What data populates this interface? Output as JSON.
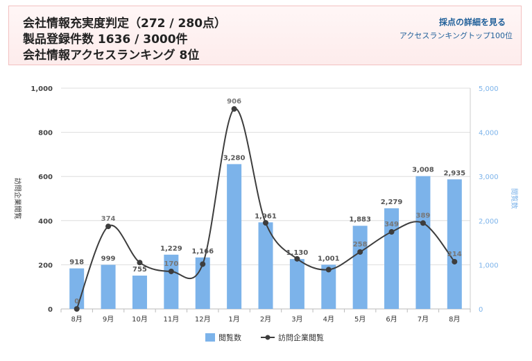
{
  "header": {
    "line1": "会社情報充実度判定（272 / 280点）",
    "line2": "製品登録件数 1636 / 3000件",
    "line3": "会社情報アクセスランキング 8位",
    "link_details": "採点の詳細を見る",
    "link_ranking": "アクセスランキングトップ100位"
  },
  "chart_data": {
    "type": "bar",
    "categories": [
      "8月",
      "9月",
      "10月",
      "11月",
      "12月",
      "1月",
      "2月",
      "3月",
      "4月",
      "5月",
      "6月",
      "7月",
      "8月"
    ],
    "series": [
      {
        "name": "閲覧数",
        "type": "bar",
        "axis": "right",
        "color": "#7cb3ea",
        "values": [
          918,
          999,
          755,
          1229,
          1166,
          3280,
          1961,
          1130,
          1001,
          1883,
          2279,
          3008,
          2935
        ]
      },
      {
        "name": "訪問企業閲覧",
        "type": "line",
        "axis": "left",
        "color": "#3d3d3d",
        "values": [
          0,
          374,
          210,
          170,
          203,
          906,
          390,
          227,
          178,
          258,
          349,
          389,
          214
        ],
        "labeled": [
          true,
          true,
          false,
          true,
          false,
          true,
          false,
          false,
          false,
          true,
          true,
          true,
          true
        ]
      }
    ],
    "left_axis": {
      "label": "訪問企業閲覧",
      "ticks": [
        "0",
        "200",
        "400",
        "600",
        "800",
        "1,000"
      ],
      "range": [
        0,
        1000
      ]
    },
    "right_axis": {
      "label": "閲覧数",
      "ticks": [
        "0",
        "1,000",
        "2,000",
        "3,000",
        "4,000",
        "5,000"
      ],
      "range": [
        0,
        5000
      ]
    },
    "grid": true,
    "legend_position": "bottom"
  },
  "footer": {
    "note": "…"
  }
}
